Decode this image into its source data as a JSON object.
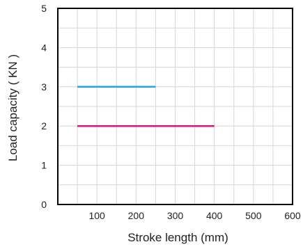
{
  "chart_data": {
    "type": "line",
    "title": "",
    "xlabel": "Stroke length (mm)",
    "ylabel": "Load capacity ( KN )",
    "xlim": [
      0,
      600
    ],
    "ylim": [
      0,
      5
    ],
    "x_ticks": [
      100,
      200,
      300,
      400,
      500,
      600
    ],
    "y_ticks": [
      0,
      1,
      2,
      3,
      4,
      5
    ],
    "grid": true,
    "series": [
      {
        "x": [
          50,
          250
        ],
        "values": [
          3,
          3
        ],
        "color": "#1fa7e0"
      },
      {
        "x": [
          50,
          400
        ],
        "values": [
          2,
          2
        ],
        "color": "#d4177f"
      }
    ]
  }
}
